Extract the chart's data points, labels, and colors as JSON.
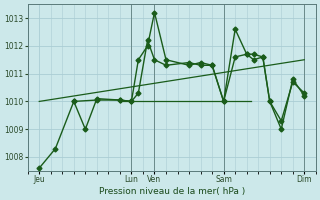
{
  "background_color": "#cce8ea",
  "grid_color": "#aacdd4",
  "line_color": "#1a5c1a",
  "xlabel": "Pression niveau de la mer( hPa )",
  "ylim": [
    1007.5,
    1013.5
  ],
  "yticks": [
    1008,
    1009,
    1010,
    1011,
    1012,
    1013
  ],
  "xlim": [
    -0.5,
    12.0
  ],
  "xtick_labels": [
    "Jeu",
    "Lun",
    "Ven",
    "Sam",
    "Dim"
  ],
  "xtick_positions": [
    0,
    4,
    5,
    8,
    11.5
  ],
  "vline_positions": [
    4,
    5,
    8,
    11.5
  ],
  "vline_color": "#6a8a8a",
  "vline_linewidth": 0.7,
  "series1": {
    "x": [
      0,
      0.7,
      1.5,
      2.0,
      2.5,
      3.5,
      4.0,
      4.3,
      4.7,
      5.0,
      5.5,
      6.5,
      7.0,
      7.5,
      8.0,
      8.5,
      9.0,
      9.3,
      9.7,
      10.0,
      10.5,
      11.0,
      11.5
    ],
    "y": [
      1007.6,
      1008.3,
      1010.0,
      1009.0,
      1010.1,
      1010.05,
      1010.0,
      1011.5,
      1012.0,
      1013.2,
      1011.5,
      1011.3,
      1011.4,
      1011.3,
      1010.0,
      1012.6,
      1011.7,
      1011.7,
      1011.6,
      1010.0,
      1009.0,
      1010.8,
      1010.2
    ],
    "marker": "D",
    "markersize": 2.5,
    "linewidth": 1.0
  },
  "series2": {
    "x": [
      1.5,
      2.5,
      3.5,
      4.0,
      4.3,
      4.7,
      5.0,
      5.5,
      6.5,
      7.0,
      7.5,
      8.0,
      8.5,
      9.0,
      9.3,
      9.7,
      10.0,
      10.5,
      11.0,
      11.5
    ],
    "y": [
      1010.0,
      1010.05,
      1010.05,
      1010.0,
      1010.3,
      1012.2,
      1011.5,
      1011.3,
      1011.4,
      1011.3,
      1011.3,
      1010.0,
      1011.6,
      1011.7,
      1011.5,
      1011.6,
      1010.0,
      1009.3,
      1010.7,
      1010.3
    ],
    "marker": "D",
    "markersize": 2.5,
    "linewidth": 1.0
  },
  "series3": {
    "x": [
      0,
      11.5
    ],
    "y": [
      1010.0,
      1011.5
    ],
    "marker": null,
    "linewidth": 0.9
  },
  "series4": {
    "x": [
      3.5,
      9.2
    ],
    "y": [
      1010.0,
      1010.0
    ],
    "marker": null,
    "linewidth": 0.9
  }
}
